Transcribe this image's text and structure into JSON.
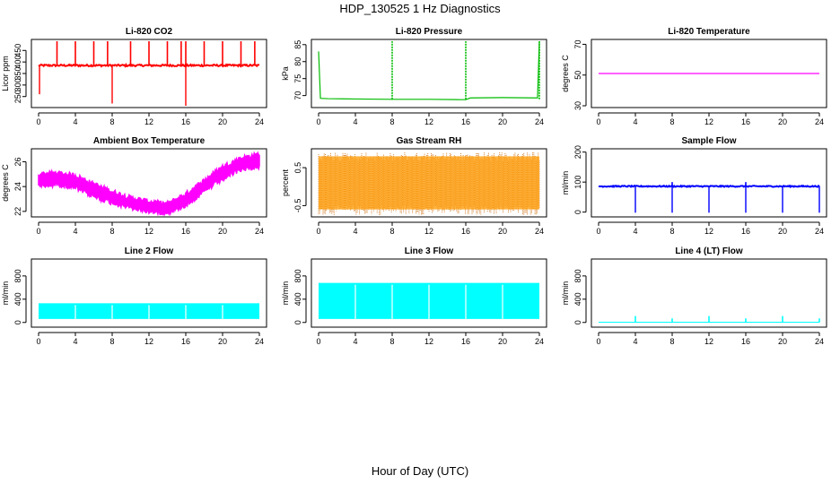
{
  "figure": {
    "title": "HDP_130525  1 Hz Diagnostics",
    "xlabel": "Hour of Day (UTC)"
  },
  "chart_data": [
    {
      "type": "line",
      "title": "Li-820 CO2",
      "ylabel": "Licor ppm",
      "color": "#ff0000",
      "x_ticks": [
        0,
        4,
        8,
        12,
        16,
        20,
        24
      ],
      "y_ticks": [
        250,
        300,
        350,
        400,
        450
      ],
      "xlim": [
        0,
        24
      ],
      "ylim": [
        210,
        490
      ],
      "baseline": 385,
      "noise": 8,
      "spikes_up_hours": [
        2,
        4,
        6,
        7.5,
        10,
        12,
        14,
        15.5,
        16,
        18,
        20,
        22,
        23.5
      ],
      "spike_up_value": 490,
      "spikes_down_hours": [
        0.1,
        8,
        16
      ],
      "spike_down_values": [
        260,
        220,
        210
      ]
    },
    {
      "type": "line",
      "title": "Li-820 Pressure",
      "ylabel": "kPa",
      "color": "#00bb00",
      "x_ticks": [
        0,
        4,
        8,
        12,
        16,
        20,
        24
      ],
      "y_ticks": [
        70,
        75,
        80,
        85
      ],
      "xlim": [
        0,
        24
      ],
      "ylim": [
        67,
        86
      ],
      "series": [
        {
          "x": [
            0,
            0.2,
            1,
            4,
            8,
            12,
            15.5,
            16,
            16.5,
            20,
            23.8,
            24
          ],
          "y": [
            83,
            69.2,
            69.1,
            69,
            68.9,
            68.9,
            68.8,
            68.8,
            69.3,
            69.4,
            69.3,
            86
          ]
        }
      ],
      "spikes_up_hours": [
        8,
        16,
        24
      ],
      "spike_up_value": 86
    },
    {
      "type": "line",
      "title": "Li-820 Temperature",
      "ylabel": "degrees C",
      "color": "#ff00ff",
      "x_ticks": [
        0,
        4,
        8,
        12,
        16,
        20,
        24
      ],
      "y_ticks": [
        30,
        50,
        70
      ],
      "xlim": [
        0,
        24
      ],
      "ylim": [
        30,
        72
      ],
      "series": [
        {
          "x": [
            0,
            24
          ],
          "y": [
            51,
            51
          ]
        }
      ]
    },
    {
      "type": "area",
      "title": "Ambient Box Temperature",
      "ylabel": "degrees C",
      "color": "#ff00ff",
      "x_ticks": [
        0,
        4,
        8,
        12,
        16,
        20,
        24
      ],
      "y_ticks": [
        22,
        24,
        26
      ],
      "xlim": [
        0,
        24
      ],
      "ylim": [
        21.7,
        26.9
      ],
      "series": [
        {
          "name": "upper",
          "x": [
            0,
            2,
            4,
            6,
            8,
            10,
            12,
            14,
            16,
            18,
            20,
            22,
            24
          ],
          "y": [
            25.0,
            25.1,
            24.9,
            24.2,
            23.6,
            23.1,
            22.8,
            22.6,
            23.4,
            24.5,
            25.6,
            26.3,
            26.6
          ]
        },
        {
          "name": "lower",
          "x": [
            0,
            2,
            4,
            6,
            8,
            10,
            12,
            14,
            16,
            18,
            20,
            22,
            24
          ],
          "y": [
            24.0,
            24.2,
            23.9,
            23.2,
            22.7,
            22.3,
            22.0,
            21.9,
            22.5,
            23.6,
            24.6,
            25.4,
            25.6
          ]
        }
      ]
    },
    {
      "type": "area",
      "title": "Gas Stream RH",
      "ylabel": "percent",
      "color": "#ff9900",
      "color2": "#cc6600",
      "x_ticks": [
        0,
        4,
        8,
        12,
        16,
        20,
        24
      ],
      "y_ticks": [
        -0.5,
        0.5
      ],
      "xlim": [
        0,
        24
      ],
      "ylim": [
        -0.75,
        0.95
      ],
      "band": [
        -0.6,
        0.8
      ],
      "outer": [
        -0.75,
        0.9
      ]
    },
    {
      "type": "line",
      "title": "Sample Flow",
      "ylabel": "ml/min",
      "color": "#0000ff",
      "x_ticks": [
        0,
        4,
        8,
        12,
        16,
        20,
        24
      ],
      "y_ticks": [
        0,
        100,
        200
      ],
      "xlim": [
        0,
        24
      ],
      "ylim": [
        -10,
        205
      ],
      "baseline": 86,
      "noise": 4,
      "spikes_down_hours": [
        4,
        8,
        12,
        16,
        20,
        24
      ],
      "spike_down_value": -2,
      "spikes_up_hours": [
        8,
        16
      ],
      "spike_up_value": 100
    },
    {
      "type": "area",
      "title": "Line 2 Flow",
      "ylabel": "ml/min",
      "color": "#00ffff",
      "x_ticks": [
        0,
        4,
        8,
        12,
        16,
        20,
        24
      ],
      "y_ticks": [
        0,
        400,
        800
      ],
      "xlim": [
        0,
        24
      ],
      "ylim": [
        -50,
        1060
      ],
      "band": [
        60,
        330
      ],
      "gaps_hours": [
        4,
        8,
        12,
        16,
        20
      ]
    },
    {
      "type": "area",
      "title": "Line 3 Flow",
      "ylabel": "ml/min",
      "color": "#00ffff",
      "x_ticks": [
        0,
        4,
        8,
        12,
        16,
        20,
        24
      ],
      "y_ticks": [
        0,
        400,
        800
      ],
      "xlim": [
        0,
        24
      ],
      "ylim": [
        -50,
        1060
      ],
      "band": [
        60,
        680
      ],
      "gaps_hours": [
        4,
        8,
        12,
        16,
        20
      ]
    },
    {
      "type": "line",
      "title": "Line 4 (LT) Flow",
      "ylabel": "ml/min",
      "color": "#00ffff",
      "x_ticks": [
        0,
        4,
        8,
        12,
        16,
        20,
        24
      ],
      "y_ticks": [
        0,
        400,
        800
      ],
      "xlim": [
        0,
        24
      ],
      "ylim": [
        -50,
        1060
      ],
      "baseline": 3,
      "spikes_up_hours": [
        4,
        8,
        12,
        16,
        20,
        24
      ],
      "spike_up_values": [
        110,
        70,
        110,
        70,
        110,
        70
      ]
    }
  ]
}
